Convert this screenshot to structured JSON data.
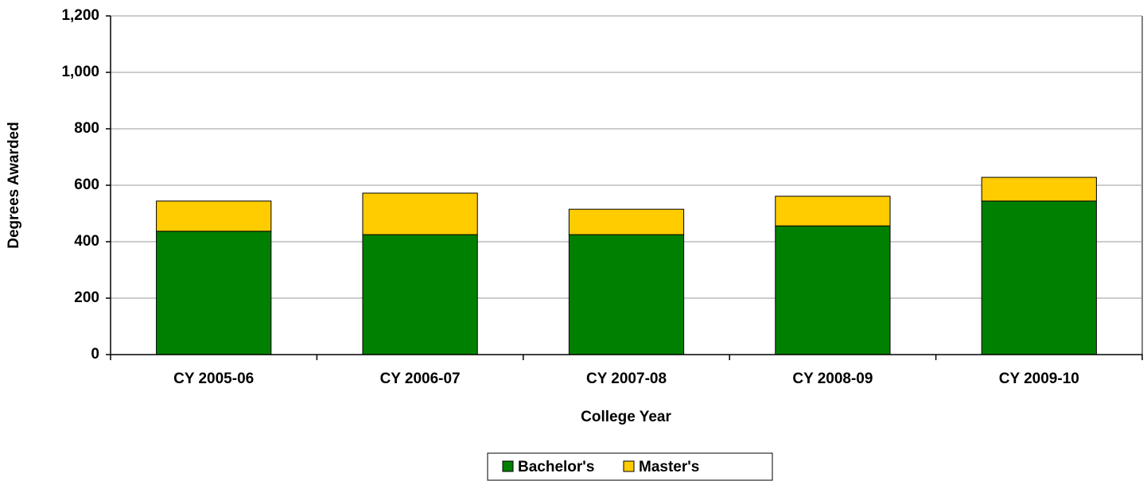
{
  "chart_data": {
    "type": "stacked_bar",
    "categories": [
      "CY 2005-06",
      "CY 2006-07",
      "CY 2007-08",
      "CY 2008-09",
      "CY 2009-10"
    ],
    "series": [
      {
        "name": "Bachelor's",
        "color": "#008000",
        "values": [
          437,
          425,
          425,
          456,
          544
        ]
      },
      {
        "name": "Master's",
        "color": "#ffcc00",
        "values": [
          107,
          147,
          90,
          105,
          84
        ]
      }
    ],
    "xlabel": "College Year",
    "ylabel": "Degrees Awarded",
    "ylim": [
      0,
      1200
    ],
    "yticks": [
      0,
      200,
      400,
      600,
      800,
      {
        "value": 1000,
        "label": "1,000"
      },
      {
        "value": 1200,
        "label": "1,200"
      }
    ],
    "grid": true,
    "legend": "bottom"
  }
}
